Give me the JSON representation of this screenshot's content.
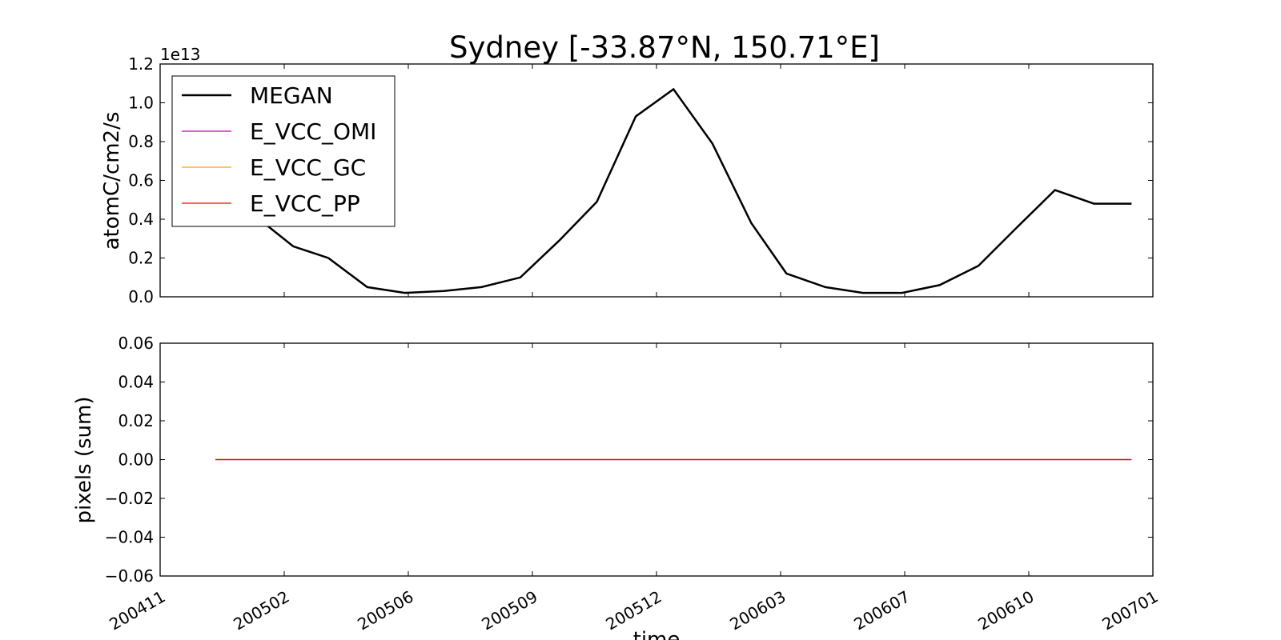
{
  "figure": {
    "title": "Sydney [-33.87°N, 150.71°E]"
  },
  "chart_data": [
    {
      "type": "line",
      "title": "Sydney [-33.87°N, 150.71°E]",
      "ylabel": "atomC/cm2/s",
      "y_offset_label": "1e13",
      "y_scale_factor": 10000000000000.0,
      "ylim": [
        0.0,
        1.2
      ],
      "yticks": [
        "0.0",
        "0.2",
        "0.4",
        "0.6",
        "0.8",
        "1.0",
        "1.2"
      ],
      "xlim": [
        "2004-11-01",
        "2007-01-01"
      ],
      "xticks": [
        "200411",
        "200502",
        "200506",
        "200509",
        "200512",
        "200603",
        "200607",
        "200610",
        "200701"
      ],
      "legend_position": "upper-left",
      "series": [
        {
          "name": "MEGAN",
          "color": "#000000",
          "x": [
            "2004-12-15",
            "2005-01-15",
            "2005-02-15",
            "2005-03-15",
            "2005-04-15",
            "2005-05-15",
            "2005-06-15",
            "2005-07-15",
            "2005-08-15",
            "2005-09-15",
            "2005-10-15",
            "2005-11-15",
            "2005-12-15",
            "2006-01-15",
            "2006-02-15",
            "2006-03-15",
            "2006-04-15",
            "2006-05-15",
            "2006-06-15",
            "2006-07-15",
            "2006-08-15",
            "2006-09-15",
            "2006-10-15",
            "2006-11-15",
            "2006-12-15"
          ],
          "values": [
            0.55,
            0.42,
            0.26,
            0.2,
            0.05,
            0.02,
            0.03,
            0.05,
            0.1,
            0.29,
            0.49,
            0.93,
            1.07,
            0.79,
            0.38,
            0.12,
            0.05,
            0.02,
            0.02,
            0.06,
            0.16,
            0.36,
            0.55,
            0.48,
            0.48
          ]
        },
        {
          "name": "E_VCC_OMI",
          "color": "#bf00bf",
          "x": [],
          "values": []
        },
        {
          "name": "E_VCC_GC",
          "color": "#ffa500",
          "x": [],
          "values": []
        },
        {
          "name": "E_VCC_PP",
          "color": "#ff0000",
          "x": [],
          "values": []
        }
      ]
    },
    {
      "type": "line",
      "ylabel": "pixels (sum)",
      "xlabel": "time",
      "ylim": [
        -0.06,
        0.06
      ],
      "yticks": [
        "−0.06",
        "−0.04",
        "−0.02",
        "0.00",
        "0.02",
        "0.04",
        "0.06"
      ],
      "xlim": [
        "2004-11-01",
        "2007-01-01"
      ],
      "xticks": [
        "200411",
        "200502",
        "200506",
        "200509",
        "200512",
        "200603",
        "200607",
        "200610",
        "200701"
      ],
      "series": [
        {
          "name": "E_VCC_PP",
          "color": "#ff0000",
          "x": [
            "2004-12-15",
            "2006-12-15"
          ],
          "values": [
            0.0,
            0.0
          ]
        }
      ]
    }
  ]
}
